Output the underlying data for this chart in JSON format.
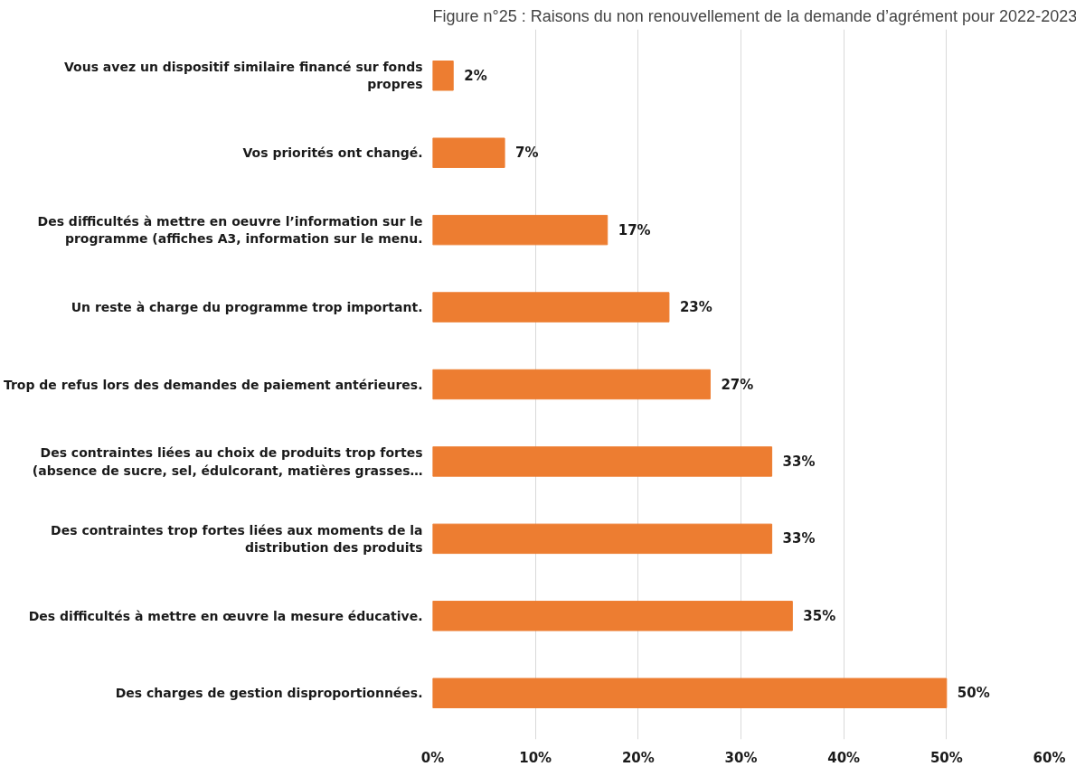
{
  "chart_data": {
    "type": "bar",
    "orientation": "horizontal",
    "title": "Figure n°25 : Raisons du non renouvellement de la demande d’agrément pour 2022-2023",
    "categories": [
      "Vous avez un dispositif similaire financé sur fonds propres",
      "Vos priorités ont changé.",
      "Des difficultés à mettre en oeuvre l’information sur le programme (affiches A3, information sur le menu.",
      "Un reste à charge du programme trop important.",
      "Trop de refus lors des demandes de paiement antérieures.",
      "Des contraintes liées au choix de produits trop fortes (absence de sucre, sel, édulcorant, matières grasses…",
      "Des contraintes trop fortes liées aux moments de la distribution des produits",
      "Des difficultés à mettre en œuvre la mesure éducative.",
      "Des charges de gestion disproportionnées."
    ],
    "values": [
      2,
      7,
      17,
      23,
      27,
      33,
      33,
      35,
      50
    ],
    "color": "#ed7d31",
    "value_labels": [
      "2%",
      "7%",
      "17%",
      "23%",
      "27%",
      "33%",
      "33%",
      "35%",
      "50%"
    ],
    "xlim": [
      0,
      60
    ],
    "xticks": [
      {
        "value": 0,
        "label": "0%"
      },
      {
        "value": 10,
        "label": "10%"
      },
      {
        "value": 20,
        "label": "20%"
      },
      {
        "value": 30,
        "label": "30%"
      },
      {
        "value": 40,
        "label": "40%"
      },
      {
        "value": 50,
        "label": "50%"
      },
      {
        "value": 60,
        "label": "60%"
      }
    ],
    "grid": "x"
  }
}
